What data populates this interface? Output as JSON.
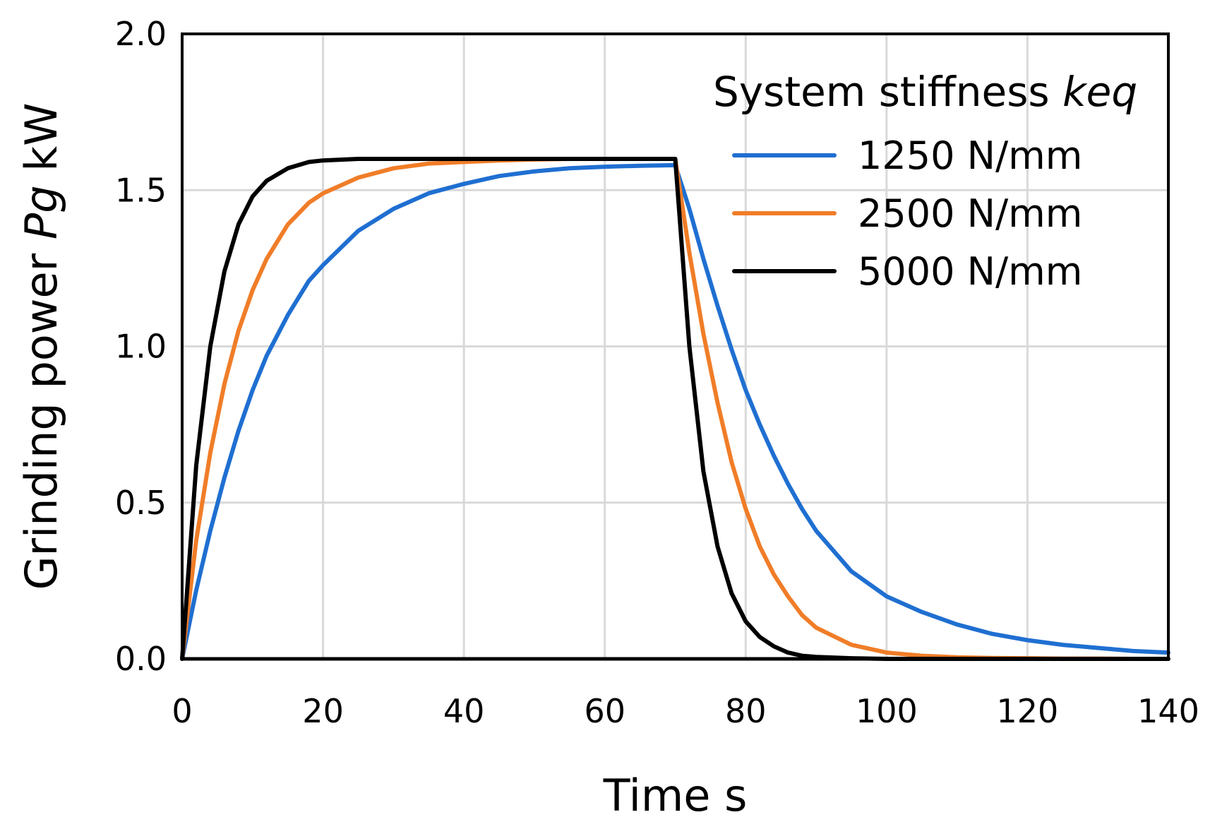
{
  "chart_data": {
    "type": "line",
    "xlabel": "Time s",
    "ylabel": {
      "prefix": "Grinding power ",
      "symbol": "Pg",
      "suffix": " kW"
    },
    "xlim": [
      0,
      140
    ],
    "ylim": [
      0,
      2.0
    ],
    "xticks": [
      0,
      20,
      40,
      60,
      80,
      100,
      120,
      140
    ],
    "xtick_labels": [
      "0",
      "20",
      "40",
      "60",
      "80",
      "100",
      "120",
      "140"
    ],
    "yticks": [
      0,
      0.5,
      1.0,
      1.5,
      2.0
    ],
    "ytick_labels": [
      "0.0",
      "0.5",
      "1.0",
      "1.5",
      "2.0"
    ],
    "grid": true,
    "legend": {
      "title_prefix": "System stiffness ",
      "title_symbol": "keq",
      "placement": "top-right"
    },
    "x": [
      0,
      2,
      4,
      6,
      8,
      10,
      12,
      15,
      18,
      20,
      25,
      30,
      35,
      40,
      45,
      50,
      55,
      60,
      65,
      70,
      72,
      74,
      76,
      78,
      80,
      82,
      84,
      86,
      88,
      90,
      95,
      100,
      105,
      110,
      115,
      120,
      125,
      130,
      135,
      140
    ],
    "series": [
      {
        "name": "1250 N/mm",
        "color": "#1f6fd1",
        "values": [
          0,
          0.22,
          0.41,
          0.58,
          0.73,
          0.86,
          0.97,
          1.1,
          1.21,
          1.26,
          1.37,
          1.44,
          1.49,
          1.52,
          1.545,
          1.56,
          1.57,
          1.575,
          1.578,
          1.58,
          1.44,
          1.28,
          1.13,
          0.99,
          0.86,
          0.75,
          0.65,
          0.56,
          0.48,
          0.41,
          0.28,
          0.2,
          0.15,
          0.11,
          0.08,
          0.06,
          0.045,
          0.035,
          0.025,
          0.02
        ]
      },
      {
        "name": "2500 N/mm",
        "color": "#f07d28",
        "values": [
          0,
          0.38,
          0.66,
          0.88,
          1.05,
          1.18,
          1.28,
          1.39,
          1.46,
          1.49,
          1.54,
          1.57,
          1.585,
          1.59,
          1.595,
          1.598,
          1.6,
          1.6,
          1.6,
          1.6,
          1.3,
          1.04,
          0.82,
          0.63,
          0.48,
          0.36,
          0.27,
          0.2,
          0.14,
          0.1,
          0.045,
          0.02,
          0.01,
          0.005,
          0.003,
          0.002,
          0.001,
          0.001,
          0,
          0
        ]
      },
      {
        "name": "5000 N/mm",
        "color": "#000000",
        "values": [
          0,
          0.62,
          1.0,
          1.24,
          1.39,
          1.48,
          1.53,
          1.57,
          1.59,
          1.595,
          1.6,
          1.6,
          1.6,
          1.6,
          1.6,
          1.6,
          1.6,
          1.6,
          1.6,
          1.6,
          1.0,
          0.6,
          0.36,
          0.21,
          0.12,
          0.07,
          0.04,
          0.02,
          0.01,
          0.006,
          0.002,
          0,
          0,
          0,
          0,
          0,
          0,
          0,
          0,
          0
        ]
      }
    ]
  }
}
